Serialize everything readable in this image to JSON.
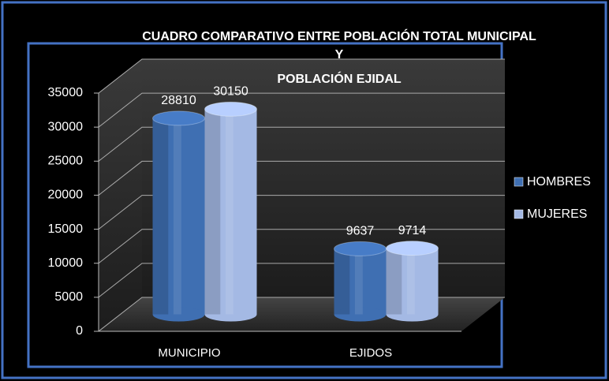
{
  "chart_data": {
    "type": "bar",
    "title": [
      "CUADRO COMPARATIVO ENTRE POBLACIÓN TOTAL MUNICIPAL",
      "Y",
      "POBLACIÓN EJIDAL"
    ],
    "categories": [
      "MUNICIPIO",
      "EJIDOS"
    ],
    "series": [
      {
        "name": "HOMBRES",
        "color": "#3f6fb2",
        "values": [
          28810,
          9637
        ]
      },
      {
        "name": "MUJERES",
        "color": "#a4b9e4",
        "values": [
          30150,
          9714
        ]
      }
    ],
    "ylim": [
      0,
      35000
    ],
    "yticks": [
      0,
      5000,
      10000,
      15000,
      20000,
      25000,
      30000,
      35000
    ],
    "grid": true,
    "legend": "right"
  }
}
